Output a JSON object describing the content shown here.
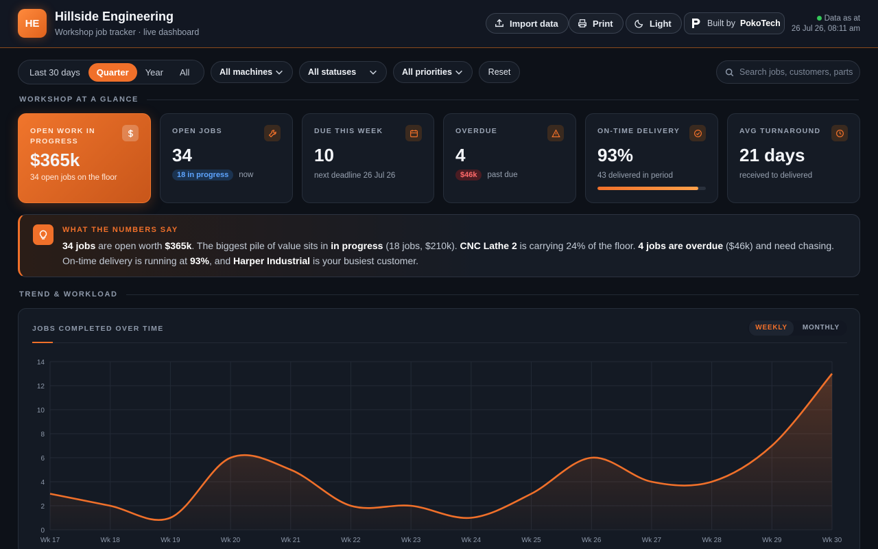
{
  "header": {
    "logo": "HE",
    "title": "Hillside Engineering",
    "subtitle": "Workshop job tracker · live dashboard",
    "import_label": "Import data",
    "print_label": "Print",
    "theme_label": "Light",
    "built_by_prefix": "Built by",
    "built_by_name": "PokoTech",
    "data_as_at_label": "Data as at",
    "data_as_at_value": "26 Jul 26, 08:11 am"
  },
  "filters": {
    "ranges": [
      "Last 30 days",
      "Quarter",
      "Year",
      "All"
    ],
    "active_range": "Quarter",
    "machines": "All machines",
    "statuses": "All statuses",
    "priorities": "All priorities",
    "reset": "Reset",
    "search_placeholder": "Search jobs, customers, parts"
  },
  "sections": {
    "glance": "WORKSHOP AT A GLANCE",
    "trend": "TREND & WORKLOAD"
  },
  "kpis": {
    "wip": {
      "label": "OPEN WORK IN PROGRESS",
      "value": "$365k",
      "sub": "34 open jobs on the floor"
    },
    "open": {
      "label": "OPEN JOBS",
      "value": "34",
      "pill": "18 in progress",
      "sub": "now"
    },
    "due": {
      "label": "DUE THIS WEEK",
      "value": "10",
      "sub": "next deadline 26 Jul 26"
    },
    "overdue": {
      "label": "OVERDUE",
      "value": "4",
      "pill": "$46k",
      "sub": "past due"
    },
    "ontime": {
      "label": "ON-TIME DELIVERY",
      "value": "93%",
      "sub": "43 delivered in period",
      "progress": 0.93
    },
    "turnaround": {
      "label": "AVG TURNAROUND",
      "value": "21 days",
      "sub": "received to delivered"
    }
  },
  "insight": {
    "title": "WHAT THE NUMBERS SAY",
    "parts": [
      {
        "t": "34 jobs",
        "b": true
      },
      {
        "t": " are open worth ",
        "b": false
      },
      {
        "t": "$365k",
        "b": true
      },
      {
        "t": ". The biggest pile of value sits in ",
        "b": false
      },
      {
        "t": "in progress",
        "b": true
      },
      {
        "t": " (18 jobs, $210k). ",
        "b": false
      },
      {
        "t": "CNC Lathe 2",
        "b": true
      },
      {
        "t": " is carrying 24% of the floor. ",
        "b": false
      },
      {
        "t": "4 jobs are overdue",
        "b": true
      },
      {
        "t": " ($46k) and need chasing. On-time delivery is running at ",
        "b": false
      },
      {
        "t": "93%",
        "b": true
      },
      {
        "t": ", and ",
        "b": false
      },
      {
        "t": "Harper Industrial",
        "b": true
      },
      {
        "t": " is your busiest customer.",
        "b": false
      }
    ]
  },
  "chart_card": {
    "title": "JOBS COMPLETED OVER TIME",
    "toggle": [
      "WEEKLY",
      "MONTHLY"
    ],
    "active_toggle": "WEEKLY"
  },
  "colors": {
    "accent": "#f0702a",
    "positive": "#34c759",
    "negative": "#ff6a6a",
    "info": "#5ea5ff"
  },
  "chart_data": {
    "type": "area",
    "categories": [
      "Wk 17",
      "Wk 18",
      "Wk 19",
      "Wk 20",
      "Wk 21",
      "Wk 22",
      "Wk 23",
      "Wk 24",
      "Wk 25",
      "Wk 26",
      "Wk 27",
      "Wk 28",
      "Wk 29",
      "Wk 30"
    ],
    "values": [
      3,
      2,
      1,
      6,
      5,
      2,
      2,
      1,
      3,
      6,
      4,
      4,
      7,
      13
    ],
    "ylim": [
      0,
      14
    ],
    "yticks": [
      0,
      2,
      4,
      6,
      8,
      10,
      12,
      14
    ],
    "grid": true
  }
}
